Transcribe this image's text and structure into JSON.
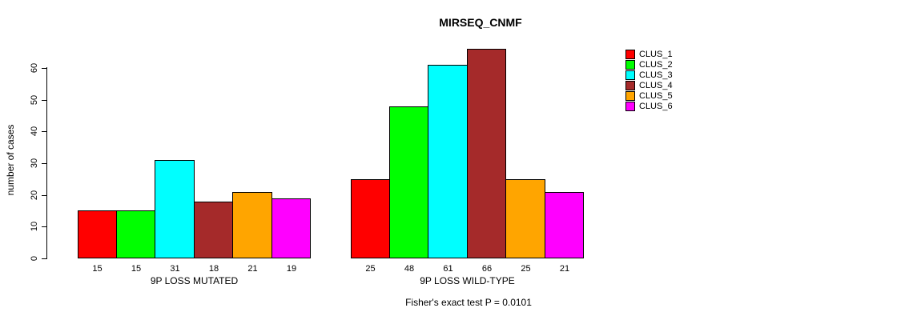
{
  "chart_data": {
    "type": "bar",
    "title": "MIRSEQ_CNMF",
    "xlabel": "",
    "ylabel": "number of cases",
    "yticks": [
      0,
      10,
      20,
      30,
      40,
      50,
      60
    ],
    "ylim": [
      0,
      66
    ],
    "grid": false,
    "legend_position": "right",
    "bar_value_labels": true,
    "categories": [
      "9P LOSS MUTATED",
      "9P LOSS WILD-TYPE"
    ],
    "series": [
      {
        "name": "CLUS_1",
        "color": "#FF0000",
        "values": [
          15,
          25
        ]
      },
      {
        "name": "CLUS_2",
        "color": "#00FF00",
        "values": [
          15,
          48
        ]
      },
      {
        "name": "CLUS_3",
        "color": "#00FFFF",
        "values": [
          31,
          61
        ]
      },
      {
        "name": "CLUS_4",
        "color": "#A52A2A",
        "values": [
          18,
          66
        ]
      },
      {
        "name": "CLUS_5",
        "color": "#FFA500",
        "values": [
          21,
          25
        ]
      },
      {
        "name": "CLUS_6",
        "color": "#FF00FF",
        "values": [
          19,
          21
        ]
      }
    ],
    "annotation": "Fisher's exact test P = 0.0101",
    "colors": {
      "background": "#FFFFFF",
      "axis": "#000000",
      "bar_border": "#000000",
      "text": "#000000"
    }
  }
}
